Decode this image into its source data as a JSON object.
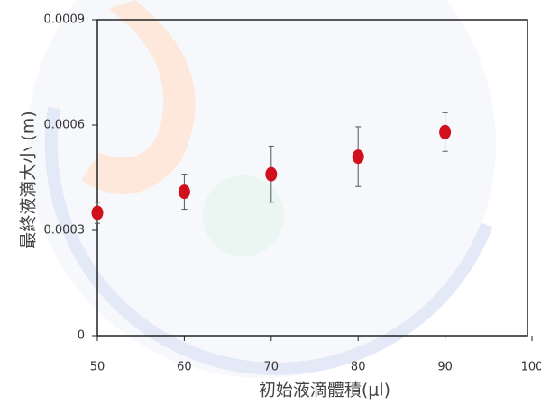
{
  "chart_data": {
    "type": "scatter",
    "x_label": "初始液滴體積(μl)",
    "y_label": "最終液滴大小 (m)",
    "x": [
      50,
      60,
      70,
      80,
      90
    ],
    "values": [
      0.00035,
      0.00041,
      0.00046,
      0.00051,
      0.00058
    ],
    "errors": [
      3e-05,
      5e-05,
      8e-05,
      8.5e-05,
      5.5e-05
    ],
    "color": "#d0101c",
    "xlim": [
      50,
      100
    ],
    "xticks": [
      50,
      60,
      70,
      80,
      90,
      100
    ],
    "ylim": [
      0,
      0.0009
    ],
    "yticks": [
      0,
      0.0003,
      0.0006,
      0.0009
    ]
  }
}
